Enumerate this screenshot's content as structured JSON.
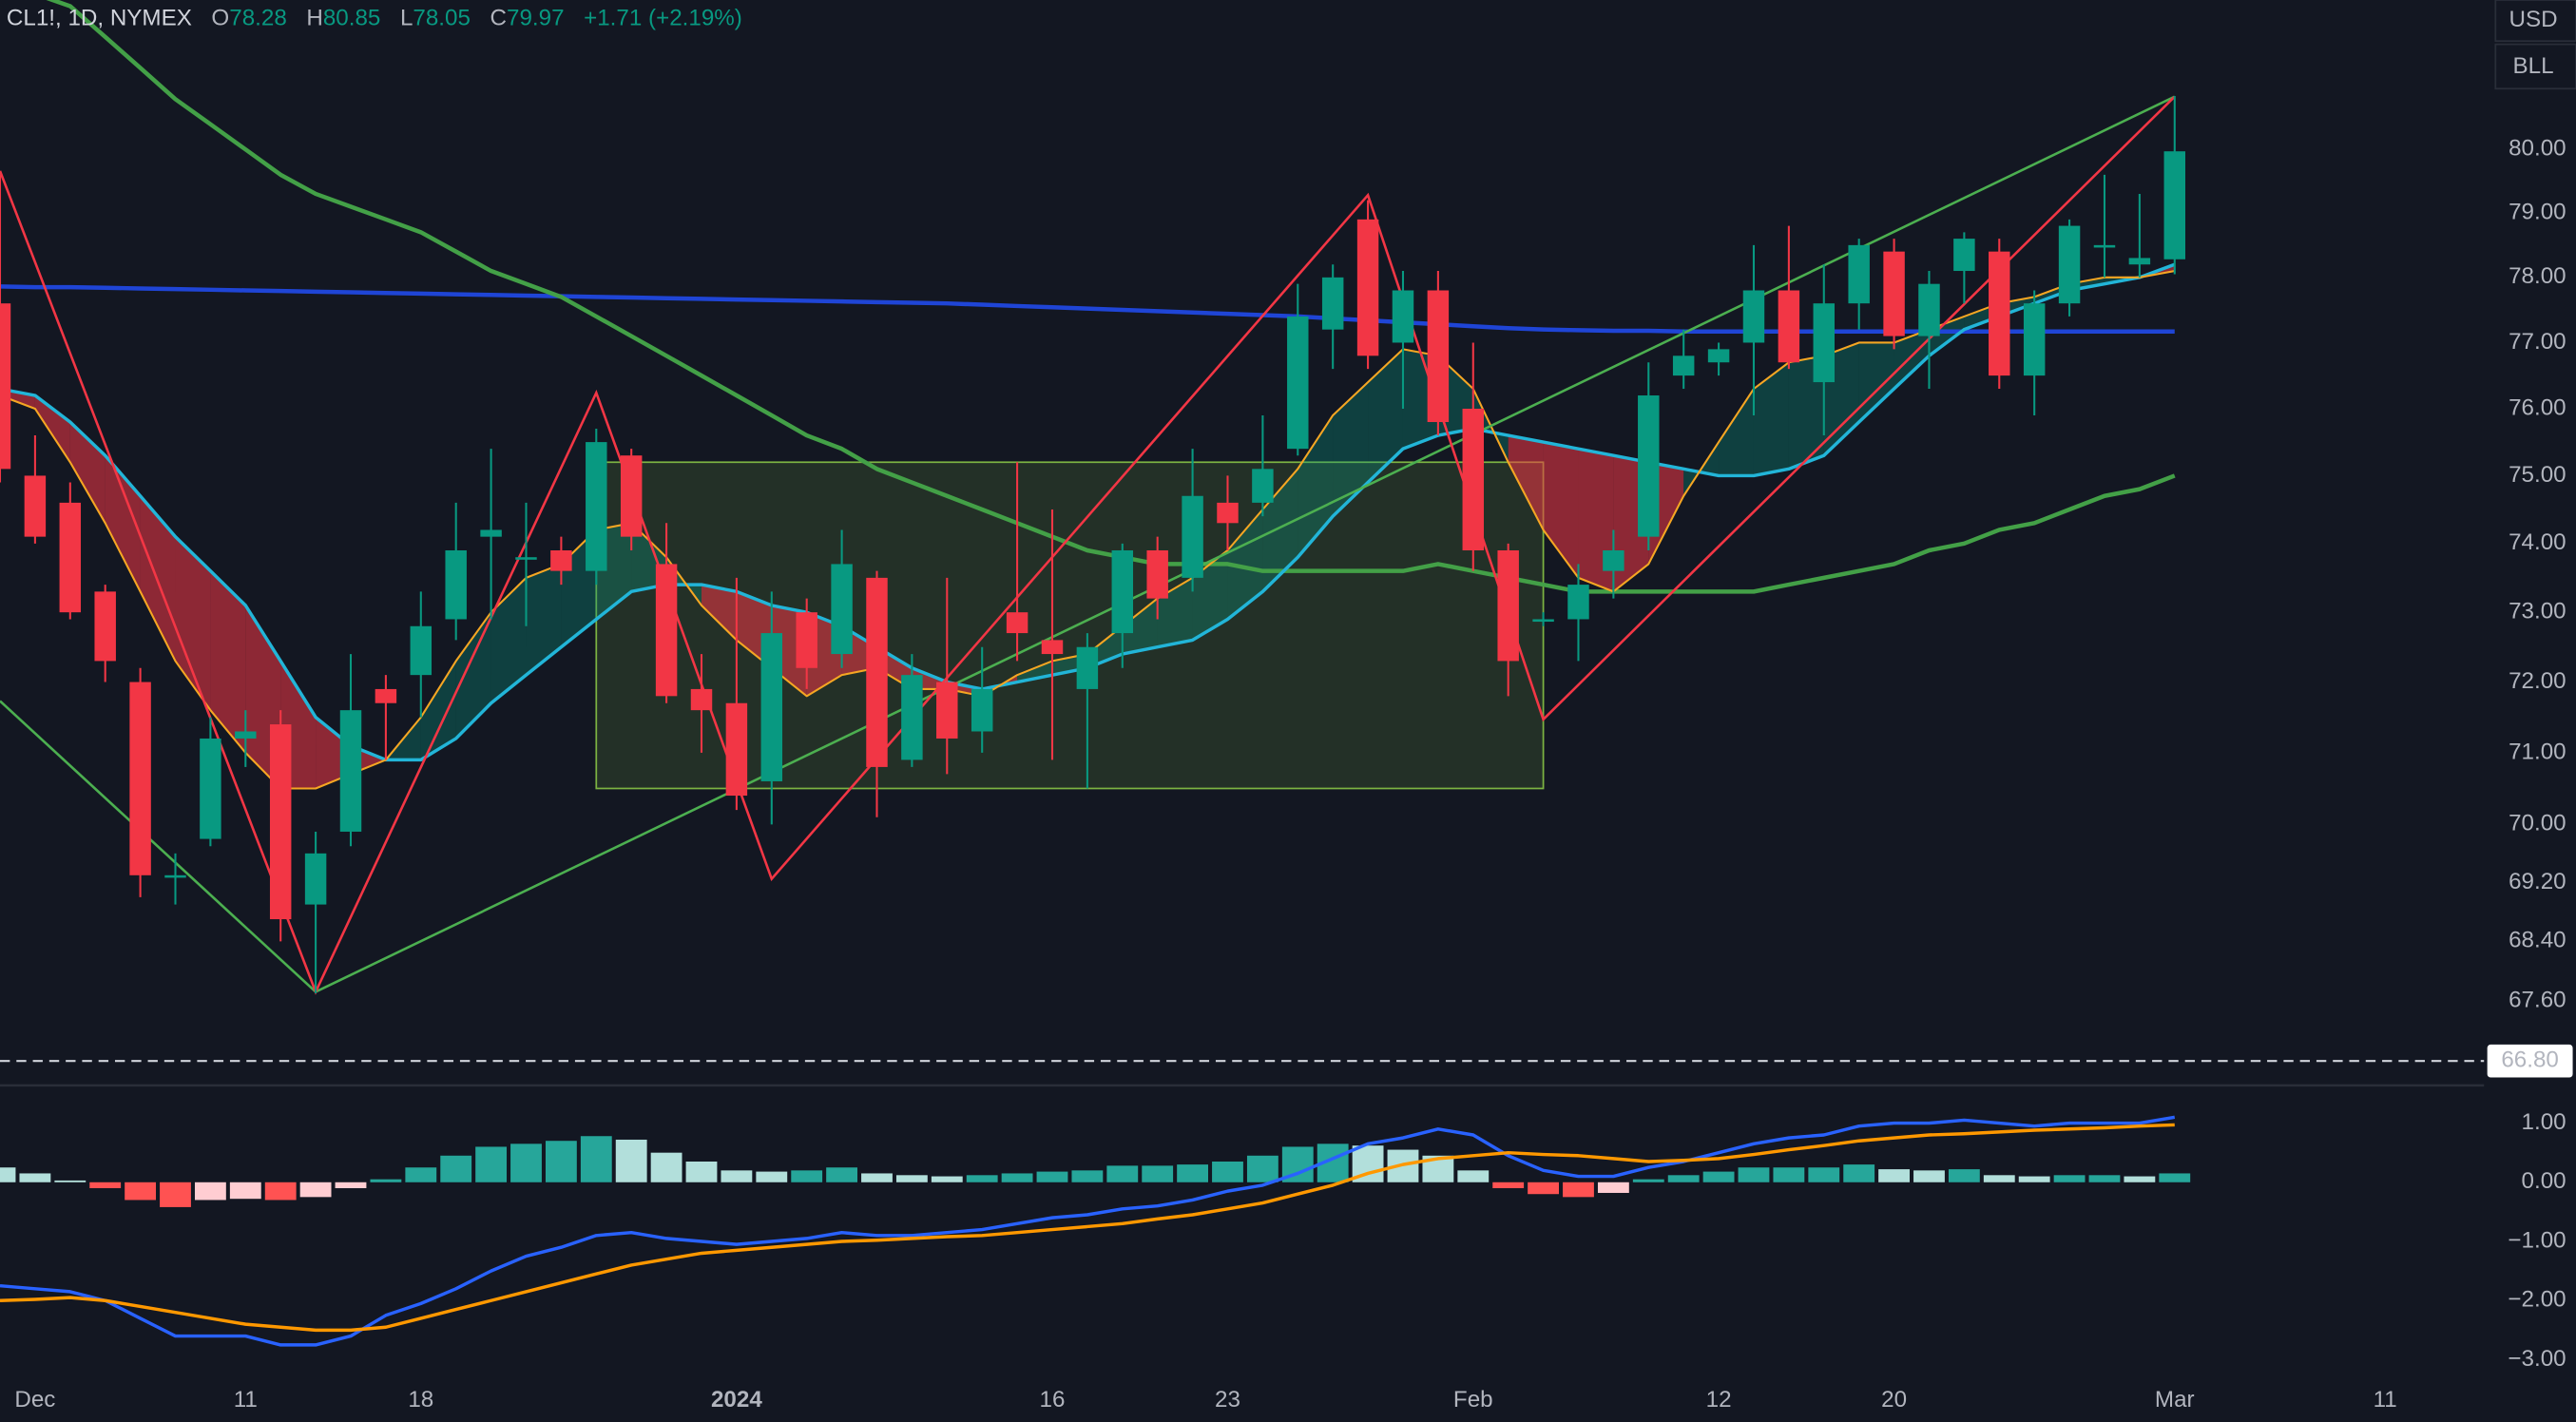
{
  "header": {
    "symbol": "CL1!, 1D, NYMEX",
    "labels": [
      "O",
      "H",
      "L",
      "C"
    ],
    "change": "+1.71 (+2.19%)",
    "currency": "USD",
    "unit": "BLL"
  },
  "chart_data": [
    {
      "type": "candlestick",
      "log": true,
      "grid": false,
      "categories": [
        null,
        "Dec",
        null,
        null,
        null,
        null,
        null,
        "11",
        null,
        null,
        null,
        null,
        "18",
        null,
        null,
        null,
        null,
        null,
        null,
        null,
        null,
        "2024",
        null,
        null,
        null,
        null,
        null,
        null,
        null,
        null,
        "16",
        null,
        null,
        null,
        null,
        "23",
        null,
        null,
        null,
        null,
        null,
        null,
        "Feb",
        null,
        null,
        null,
        null,
        null,
        null,
        "12",
        null,
        null,
        null,
        null,
        "20",
        null,
        null,
        null,
        null,
        null,
        null,
        null,
        "Mar",
        null,
        null,
        null,
        null,
        null,
        "11"
      ],
      "open": [
        77.6,
        75.0,
        74.6,
        73.3,
        72.0,
        69.3,
        69.8,
        71.2,
        71.4,
        68.9,
        69.9,
        71.9,
        72.1,
        72.9,
        74.1,
        73.8,
        73.9,
        73.6,
        75.3,
        73.7,
        71.9,
        71.7,
        70.6,
        73.0,
        72.4,
        73.5,
        70.9,
        72.0,
        71.3,
        73.0,
        72.6,
        71.9,
        72.7,
        73.9,
        73.5,
        74.6,
        74.6,
        75.4,
        77.2,
        78.9,
        77.0,
        77.8,
        76.0,
        73.9,
        72.9,
        72.9,
        73.6,
        74.1,
        76.5,
        76.7,
        77.0,
        77.8,
        76.4,
        77.6,
        78.4,
        77.1,
        78.1,
        78.4,
        76.5,
        77.6,
        78.5,
        78.2,
        78.28,
        null,
        null,
        null,
        null,
        null,
        null
      ],
      "high": [
        79.6,
        75.6,
        74.9,
        73.4,
        72.2,
        69.6,
        71.5,
        71.6,
        71.6,
        69.9,
        72.4,
        72.1,
        73.3,
        74.6,
        75.4,
        74.6,
        74.1,
        75.7,
        75.4,
        74.3,
        72.4,
        73.5,
        73.3,
        73.2,
        74.2,
        73.6,
        72.4,
        73.5,
        72.5,
        75.2,
        74.5,
        72.7,
        74.0,
        74.1,
        75.4,
        75.0,
        75.9,
        77.9,
        78.2,
        79.2,
        78.1,
        78.1,
        77.0,
        74.0,
        73.0,
        73.7,
        74.2,
        76.7,
        77.2,
        77.0,
        78.5,
        78.8,
        78.2,
        78.6,
        78.6,
        78.1,
        78.7,
        78.6,
        77.8,
        78.9,
        79.6,
        79.3,
        80.85,
        null,
        null,
        null,
        null,
        null,
        null
      ],
      "low": [
        74.9,
        74.0,
        72.9,
        72.0,
        69.0,
        68.9,
        69.7,
        70.8,
        68.4,
        67.7,
        69.7,
        70.9,
        71.5,
        72.6,
        72.9,
        72.8,
        73.4,
        73.4,
        73.9,
        71.7,
        71.0,
        70.2,
        70.0,
        71.9,
        72.2,
        70.1,
        70.8,
        70.7,
        71.0,
        72.3,
        70.9,
        70.5,
        72.2,
        72.9,
        73.3,
        73.9,
        74.4,
        75.3,
        76.6,
        76.6,
        76.0,
        75.6,
        73.6,
        71.8,
        72.8,
        72.3,
        73.2,
        73.9,
        76.3,
        76.5,
        75.9,
        76.6,
        75.6,
        77.2,
        76.9,
        76.3,
        77.6,
        76.3,
        75.9,
        77.4,
        78.0,
        78.0,
        78.05,
        null,
        null,
        null,
        null,
        null,
        null
      ],
      "close": [
        75.1,
        74.1,
        73.0,
        72.3,
        69.3,
        69.3,
        71.2,
        71.3,
        68.7,
        69.6,
        71.6,
        71.7,
        72.8,
        73.9,
        74.2,
        73.8,
        73.6,
        75.5,
        74.1,
        71.8,
        71.6,
        70.4,
        72.7,
        72.2,
        73.7,
        70.8,
        72.1,
        71.2,
        71.9,
        72.7,
        72.4,
        72.5,
        73.9,
        73.2,
        74.7,
        74.3,
        75.1,
        77.4,
        78.0,
        76.8,
        77.8,
        75.8,
        73.9,
        72.3,
        72.9,
        73.4,
        73.9,
        76.2,
        76.8,
        76.9,
        77.8,
        76.7,
        77.6,
        78.5,
        77.1,
        77.9,
        78.6,
        76.5,
        77.6,
        78.8,
        78.5,
        78.3,
        79.97,
        null,
        null,
        null,
        null,
        null,
        null
      ],
      "colors": {
        "up": "#089981",
        "down": "#f23645"
      },
      "series": [
        {
          "color": "#1f45d6",
          "width": 2.6,
          "values": [
            77.86,
            77.85,
            77.85,
            77.84,
            77.83,
            77.82,
            77.81,
            77.8,
            77.79,
            77.78,
            77.77,
            77.76,
            77.75,
            77.74,
            77.73,
            77.72,
            77.71,
            77.7,
            77.69,
            77.68,
            77.67,
            77.66,
            77.65,
            77.64,
            77.63,
            77.62,
            77.61,
            77.6,
            77.58,
            77.56,
            77.54,
            77.52,
            77.5,
            77.48,
            77.46,
            77.44,
            77.42,
            77.4,
            77.37,
            77.34,
            77.31,
            77.28,
            77.25,
            77.22,
            77.2,
            77.19,
            77.18,
            77.18,
            77.17,
            77.17,
            77.17,
            77.17,
            77.17,
            77.17,
            77.17,
            77.17,
            77.17,
            77.17,
            77.17,
            77.17,
            77.17,
            77.17,
            77.17,
            null,
            null,
            null,
            null,
            null,
            null
          ]
        },
        {
          "color": "#43a047",
          "width": 2.6,
          "values": [
            83.0,
            82.5,
            82.3,
            81.8,
            81.3,
            80.8,
            80.4,
            80.0,
            79.6,
            79.3,
            79.1,
            78.9,
            78.7,
            78.4,
            78.1,
            77.9,
            77.7,
            77.4,
            77.1,
            76.8,
            76.5,
            76.2,
            75.9,
            75.6,
            75.4,
            75.1,
            74.9,
            74.7,
            74.5,
            74.3,
            74.1,
            73.9,
            73.8,
            73.7,
            73.7,
            73.7,
            73.6,
            73.6,
            73.6,
            73.6,
            73.6,
            73.7,
            73.6,
            73.5,
            73.4,
            73.3,
            73.3,
            73.3,
            73.3,
            73.3,
            73.3,
            73.4,
            73.5,
            73.6,
            73.7,
            73.9,
            74.0,
            74.2,
            74.3,
            74.5,
            74.7,
            74.8,
            75.0,
            null,
            null,
            null,
            null,
            null,
            null
          ]
        },
        {
          "color": "#22b5d8",
          "width": 2,
          "values": [
            76.3,
            76.2,
            75.8,
            75.3,
            74.7,
            74.1,
            73.6,
            73.1,
            72.3,
            71.5,
            71.1,
            70.9,
            70.9,
            71.2,
            71.7,
            72.1,
            72.5,
            72.9,
            73.3,
            73.4,
            73.4,
            73.3,
            73.1,
            73.0,
            72.8,
            72.5,
            72.2,
            72.0,
            71.9,
            72.0,
            72.1,
            72.2,
            72.4,
            72.5,
            72.6,
            72.9,
            73.3,
            73.8,
            74.4,
            74.9,
            75.4,
            75.6,
            75.7,
            75.6,
            75.5,
            75.4,
            75.3,
            75.2,
            75.1,
            75.0,
            75.0,
            75.1,
            75.3,
            75.8,
            76.3,
            76.8,
            77.2,
            77.4,
            77.6,
            77.8,
            77.9,
            78.0,
            78.2,
            null,
            null,
            null,
            null,
            null,
            null
          ]
        },
        {
          "color": "#f5a623",
          "width": 1.2,
          "values": [
            76.2,
            76.0,
            75.2,
            74.3,
            73.3,
            72.3,
            71.6,
            71.0,
            70.5,
            70.5,
            70.7,
            70.9,
            71.5,
            72.3,
            73.0,
            73.5,
            73.7,
            74.2,
            74.3,
            73.8,
            73.1,
            72.6,
            72.2,
            71.8,
            72.1,
            72.2,
            71.9,
            71.9,
            71.8,
            72.1,
            72.3,
            72.4,
            72.8,
            73.2,
            73.5,
            73.9,
            74.5,
            75.1,
            75.9,
            76.4,
            76.9,
            76.8,
            76.3,
            75.2,
            74.2,
            73.5,
            73.3,
            73.7,
            74.7,
            75.5,
            76.3,
            76.7,
            76.8,
            77.0,
            77.0,
            77.2,
            77.4,
            77.6,
            77.7,
            77.9,
            78.0,
            78.0,
            78.1,
            null,
            null,
            null,
            null,
            null,
            null
          ]
        }
      ],
      "ribbon": {
        "series": [
          3,
          2
        ],
        "up": "rgba(8,153,129,0.32)",
        "down": "rgba(242,54,69,0.55)"
      },
      "ylim": [
        66.5,
        82.4
      ],
      "yticks": [
        {
          "value": 80,
          "label": "80.00"
        },
        {
          "value": 79,
          "label": "79.00"
        },
        {
          "value": 78,
          "label": "78.00"
        },
        {
          "value": 77,
          "label": "77.00"
        },
        {
          "value": 76,
          "label": "76.00"
        },
        {
          "value": 75,
          "label": "75.00"
        },
        {
          "value": 74,
          "label": "74.00"
        },
        {
          "value": 73,
          "label": "73.00"
        },
        {
          "value": 72,
          "label": "72.00"
        },
        {
          "value": 71,
          "label": "71.00"
        },
        {
          "value": 70,
          "label": "70.00"
        },
        {
          "value": 69.2,
          "label": "69.20"
        },
        {
          "value": 68.4,
          "label": "68.40"
        },
        {
          "value": 67.6,
          "label": "67.60"
        }
      ],
      "hline": {
        "value": 66.8,
        "label": "66.80"
      },
      "drawings": {
        "zigzag": {
          "color": "#f23645",
          "points": [
            {
              "x": 0,
              "y": 79.66
            },
            {
              "x": 9,
              "y": 67.72
            },
            {
              "x": 17,
              "y": 76.24
            },
            {
              "x": 22,
              "y": 69.25
            },
            {
              "x": 39,
              "y": 79.28
            },
            {
              "x": 44,
              "y": 71.47
            },
            {
              "x": 62,
              "y": 80.84
            }
          ]
        },
        "trend": {
          "color": "#4caf50",
          "points": [
            {
              "x": 0,
              "y": 71.73
            },
            {
              "x": 9,
              "y": 67.72
            },
            {
              "x": 62,
              "y": 80.84
            }
          ]
        },
        "box": {
          "color": "#7cb342",
          "fill": "rgba(124,179,66,0.16)",
          "from": 17,
          "to": 44,
          "top": 75.2,
          "bottom": 70.5
        }
      }
    },
    {
      "type": "macd",
      "grid": false,
      "histogram": [
        0.25,
        0.15,
        0.03,
        -0.1,
        -0.3,
        -0.42,
        -0.3,
        -0.28,
        -0.3,
        -0.25,
        -0.1,
        0.05,
        0.25,
        0.45,
        0.6,
        0.65,
        0.7,
        0.78,
        0.72,
        0.5,
        0.35,
        0.2,
        0.18,
        0.2,
        0.25,
        0.15,
        0.12,
        0.1,
        0.12,
        0.15,
        0.18,
        0.2,
        0.28,
        0.28,
        0.3,
        0.35,
        0.45,
        0.6,
        0.65,
        0.62,
        0.55,
        0.45,
        0.2,
        -0.1,
        -0.2,
        -0.25,
        -0.18,
        0.05,
        0.12,
        0.18,
        0.25,
        0.25,
        0.25,
        0.3,
        0.22,
        0.2,
        0.22,
        0.12,
        0.1,
        0.12,
        0.12,
        0.1,
        0.15,
        null,
        null,
        null,
        null,
        null,
        null
      ],
      "histogram_colors": {
        "up_rising": "#26a69a",
        "up_falling": "#b2dfdb",
        "down_falling": "#ff5252",
        "down_rising": "#ffcdd2"
      },
      "series": [
        {
          "color": "#2962ff",
          "width": 2,
          "values": [
            -1.75,
            -1.8,
            -1.85,
            -2.0,
            -2.3,
            -2.6,
            -2.6,
            -2.6,
            -2.75,
            -2.75,
            -2.6,
            -2.25,
            -2.05,
            -1.8,
            -1.5,
            -1.25,
            -1.1,
            -0.9,
            -0.85,
            -0.95,
            -1.0,
            -1.05,
            -1.0,
            -0.95,
            -0.85,
            -0.9,
            -0.9,
            -0.85,
            -0.8,
            -0.7,
            -0.6,
            -0.55,
            -0.45,
            -0.4,
            -0.3,
            -0.15,
            -0.05,
            0.15,
            0.4,
            0.65,
            0.75,
            0.9,
            0.8,
            0.45,
            0.2,
            0.1,
            0.1,
            0.25,
            0.35,
            0.5,
            0.65,
            0.75,
            0.8,
            0.95,
            1.0,
            1.0,
            1.05,
            1.0,
            0.95,
            1.0,
            1.0,
            1.0,
            1.1,
            null,
            null,
            null,
            null,
            null,
            null
          ]
        },
        {
          "color": "#ff9800",
          "width": 2,
          "values": [
            -2.0,
            -1.98,
            -1.95,
            -2.0,
            -2.1,
            -2.2,
            -2.3,
            -2.4,
            -2.45,
            -2.5,
            -2.5,
            -2.45,
            -2.3,
            -2.15,
            -2.0,
            -1.85,
            -1.7,
            -1.55,
            -1.4,
            -1.3,
            -1.2,
            -1.15,
            -1.1,
            -1.05,
            -1.0,
            -0.98,
            -0.95,
            -0.92,
            -0.9,
            -0.85,
            -0.8,
            -0.75,
            -0.7,
            -0.62,
            -0.55,
            -0.45,
            -0.35,
            -0.2,
            -0.05,
            0.15,
            0.3,
            0.4,
            0.45,
            0.5,
            0.47,
            0.45,
            0.4,
            0.35,
            0.37,
            0.4,
            0.47,
            0.55,
            0.62,
            0.7,
            0.75,
            0.8,
            0.82,
            0.85,
            0.88,
            0.9,
            0.92,
            0.95,
            0.97,
            null,
            null,
            null,
            null,
            null,
            null
          ]
        }
      ],
      "ylim": [
        -3.47,
        1.61
      ],
      "yticks": [
        {
          "value": 1,
          "label": "1.00"
        },
        {
          "value": 0,
          "label": "0.00"
        },
        {
          "value": -1,
          "label": "−1.00"
        },
        {
          "value": -2,
          "label": "−2.00"
        },
        {
          "value": -3,
          "label": "−3.00"
        }
      ]
    }
  ]
}
